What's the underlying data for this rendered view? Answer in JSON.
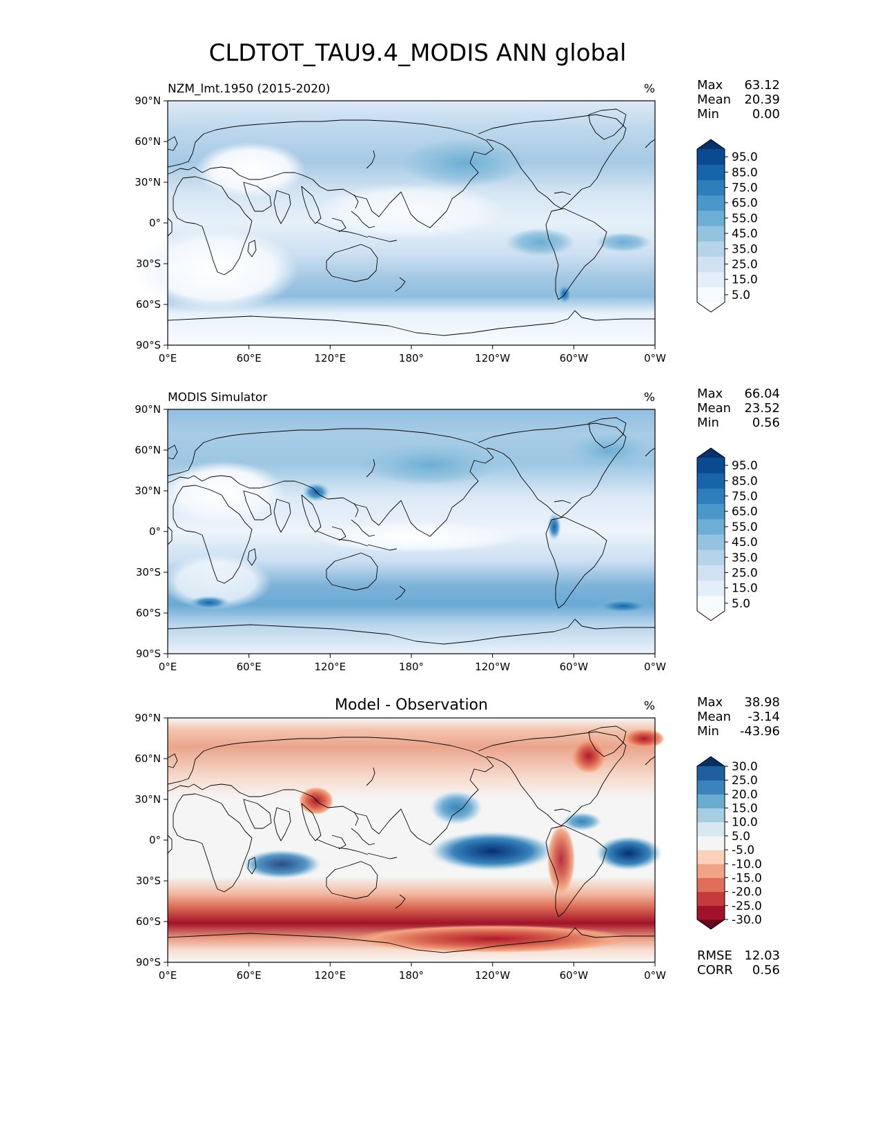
{
  "figure": {
    "title": "CLDTOT_TAU9.4_MODIS ANN global"
  },
  "axes": {
    "lon_ticks": [
      "0°E",
      "60°E",
      "120°E",
      "180°",
      "120°W",
      "60°W",
      "0°W"
    ],
    "lat_ticks": [
      "90°N",
      "60°N",
      "30°N",
      "0°",
      "30°S",
      "60°S",
      "90°S"
    ]
  },
  "panels": [
    {
      "id": "test",
      "left_title": "NZM_lmt.1950 (2015-2020)",
      "center_title": "",
      "units": "%",
      "stats": [
        {
          "label": "Max",
          "value": "63.12"
        },
        {
          "label": "Mean",
          "value": "20.39"
        },
        {
          "label": "Min",
          "value": "0.00"
        }
      ],
      "colorbar": {
        "colors": [
          "#f7fbff",
          "#e3eef9",
          "#cfe1f2",
          "#b5d4e9",
          "#93c3df",
          "#6daed5",
          "#4b97c9",
          "#2f7ebc",
          "#1864aa",
          "#0a4a90"
        ],
        "extend_max_color": "#08306b",
        "extend_min_color": "#ffffff",
        "labels": [
          "5.0",
          "15.0",
          "25.0",
          "35.0",
          "45.0",
          "55.0",
          "65.0",
          "75.0",
          "85.0",
          "95.0"
        ]
      }
    },
    {
      "id": "reference",
      "left_title": "MODIS Simulator",
      "center_title": "",
      "units": "%",
      "stats": [
        {
          "label": "Max",
          "value": "66.04"
        },
        {
          "label": "Mean",
          "value": "23.52"
        },
        {
          "label": "Min",
          "value": "0.56"
        }
      ],
      "colorbar": {
        "colors": [
          "#f7fbff",
          "#e3eef9",
          "#cfe1f2",
          "#b5d4e9",
          "#93c3df",
          "#6daed5",
          "#4b97c9",
          "#2f7ebc",
          "#1864aa",
          "#0a4a90"
        ],
        "extend_max_color": "#08306b",
        "extend_min_color": "#ffffff",
        "labels": [
          "5.0",
          "15.0",
          "25.0",
          "35.0",
          "45.0",
          "55.0",
          "65.0",
          "75.0",
          "85.0",
          "95.0"
        ]
      }
    },
    {
      "id": "diff",
      "left_title": "",
      "center_title": "Model - Observation",
      "units": "%",
      "stats": [
        {
          "label": "Max",
          "value": "38.98"
        },
        {
          "label": "Mean",
          "value": "-3.14"
        },
        {
          "label": "Min",
          "value": "-43.96"
        }
      ],
      "extra_stats": [
        {
          "label": "RMSE",
          "value": "12.03"
        },
        {
          "label": "CORR",
          "value": "0.56"
        }
      ],
      "colorbar": {
        "colors": [
          "#a11228",
          "#c53a3a",
          "#df6f59",
          "#f2a385",
          "#fbd1bb",
          "#f5f5f5",
          "#d8e8f1",
          "#a6cde2",
          "#6aabd1",
          "#3a84bb",
          "#1f5fa0"
        ],
        "extend_max_color": "#053061",
        "extend_min_color": "#67001f",
        "labels": [
          "-30.0",
          "-25.0",
          "-20.0",
          "-15.0",
          "-10.0",
          "-5.0",
          "5.0",
          "10.0",
          "15.0",
          "20.0",
          "25.0",
          "30.0"
        ]
      }
    }
  ]
}
